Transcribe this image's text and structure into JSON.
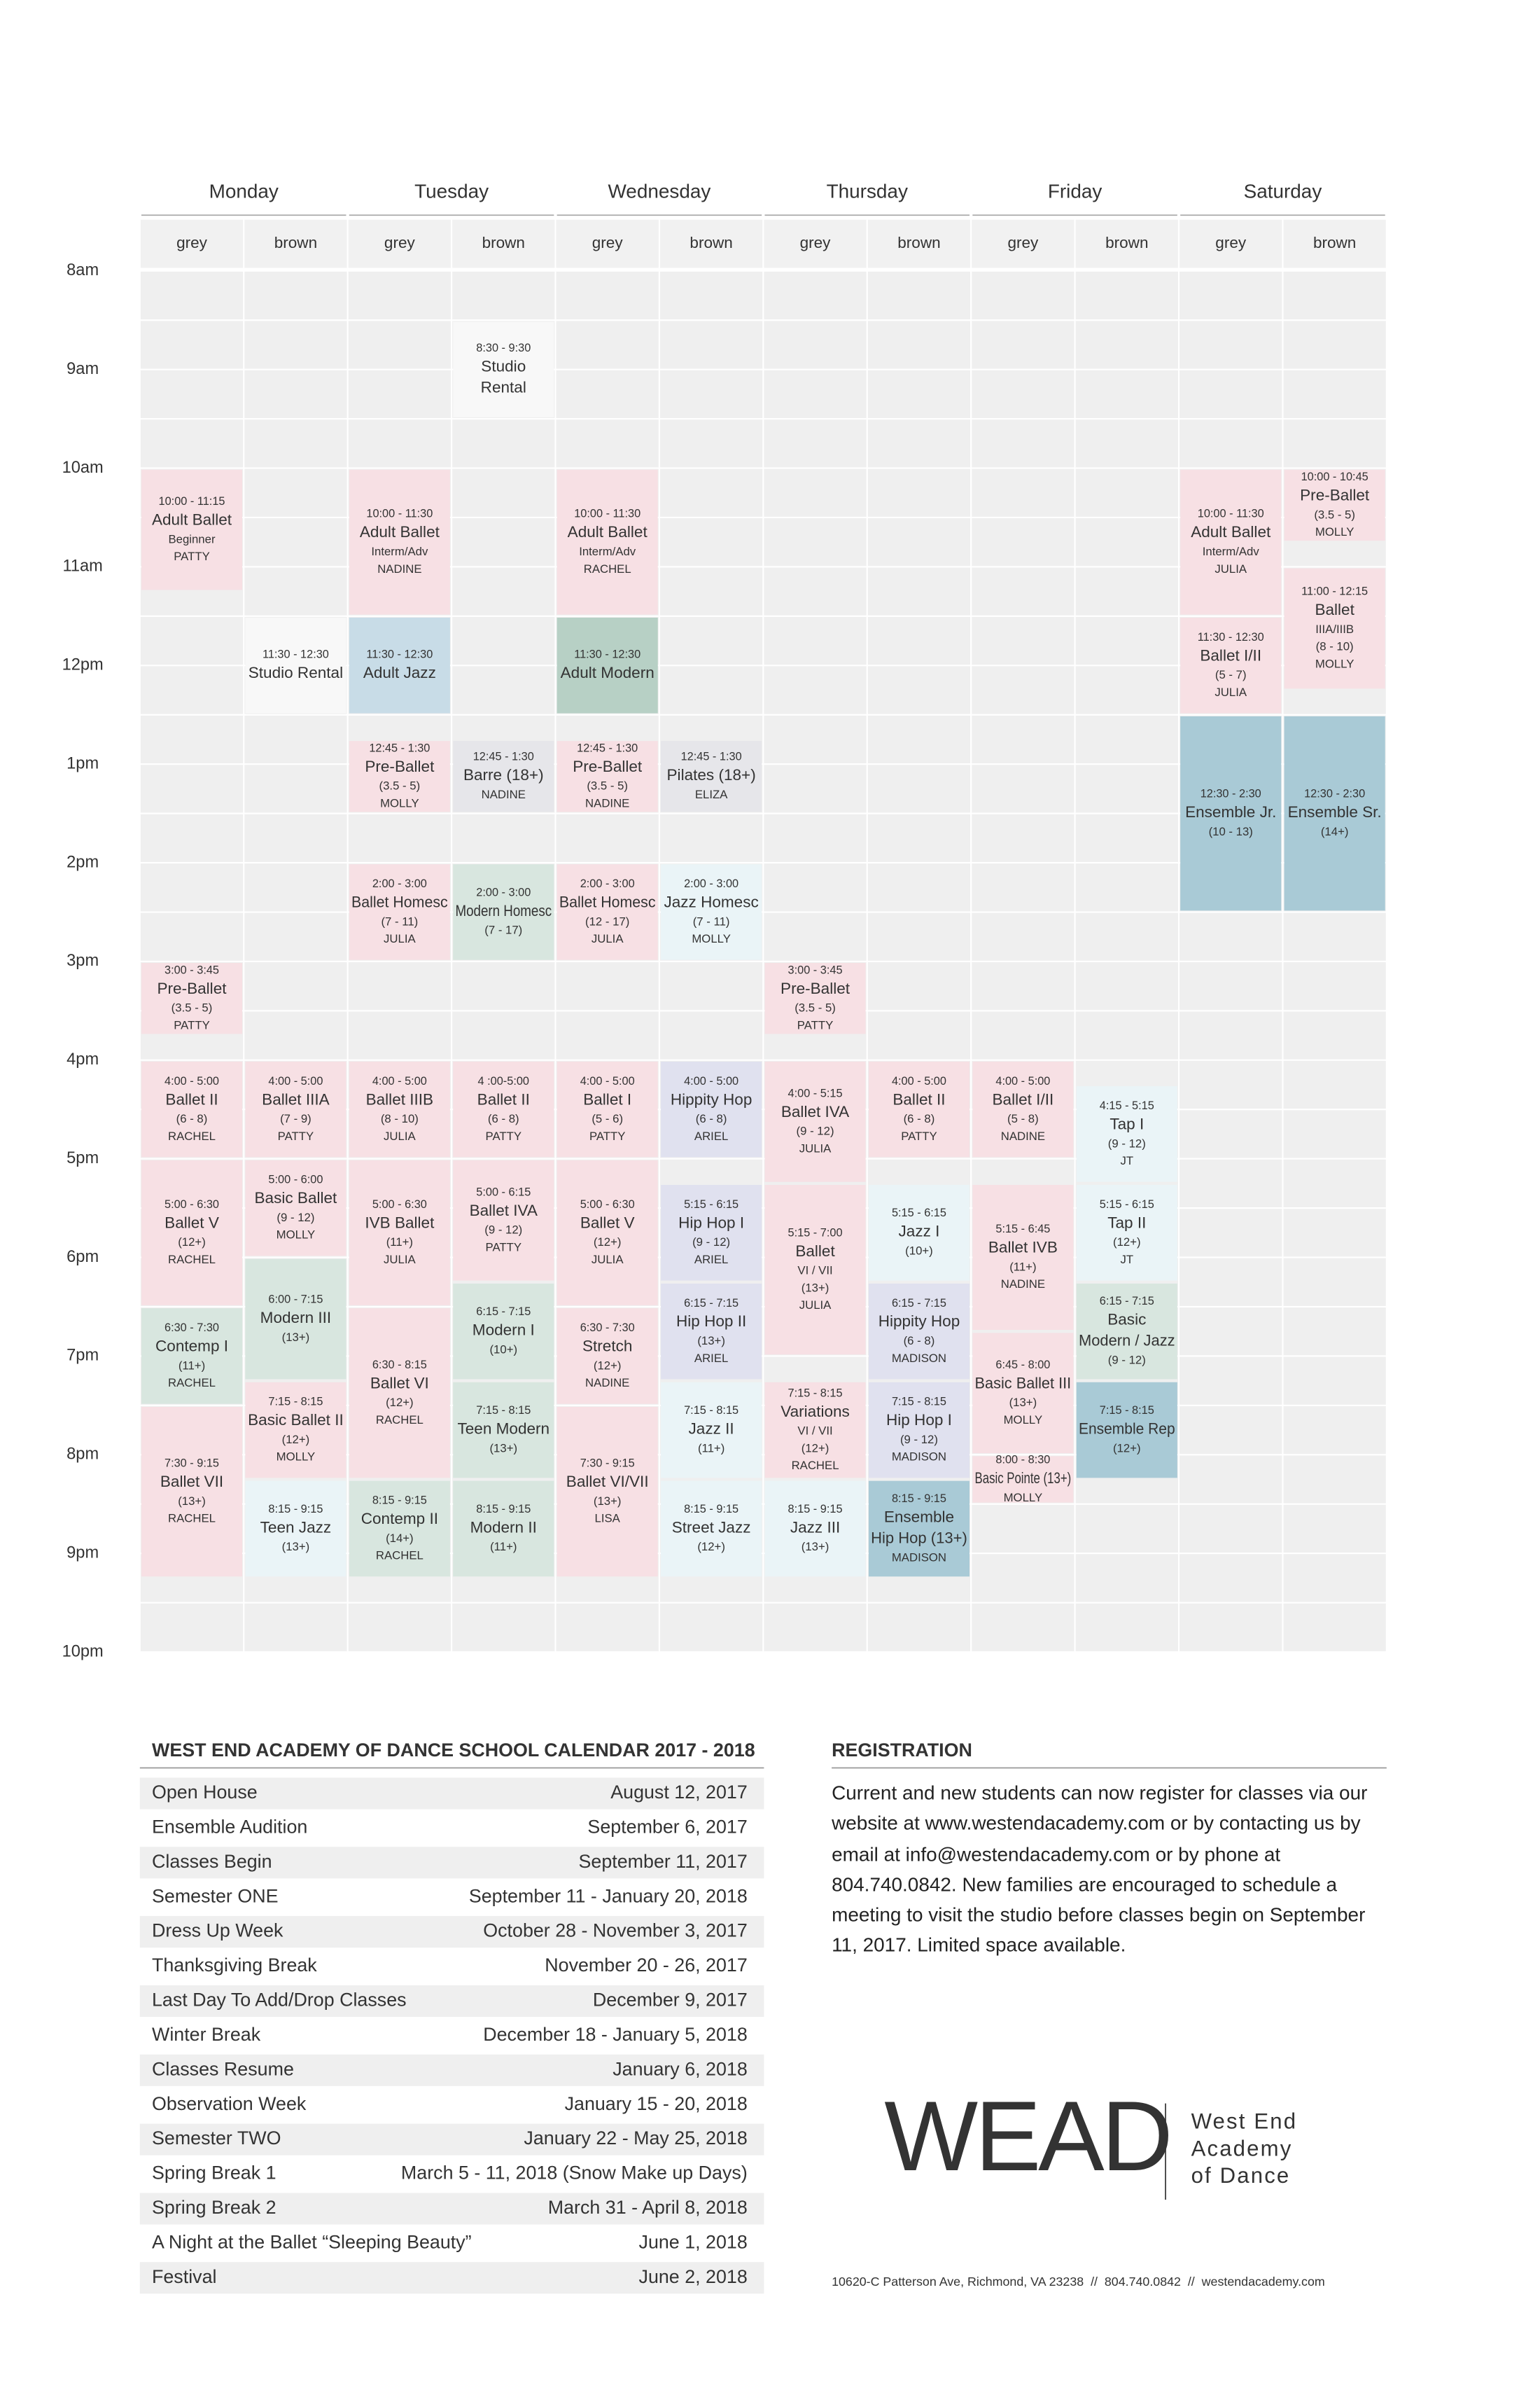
{
  "schedule": {
    "times": [
      "8am",
      "9am",
      "10am",
      "11am",
      "12pm",
      "1pm",
      "2pm",
      "3pm",
      "4pm",
      "5pm",
      "6pm",
      "7pm",
      "8pm",
      "9pm",
      "10pm"
    ],
    "days": [
      {
        "name": "Monday",
        "rooms": [
          {
            "name": "grey",
            "classes": [
              {
                "time": "10:00 - 11:15",
                "lines": [
                  "Adult Ballet",
                  "Beginner",
                  "PATTY"
                ],
                "color": "#f7e0e4"
              },
              {
                "time": "3:00 - 3:45",
                "lines": [
                  "Pre-Ballet",
                  "(3.5 - 5)",
                  "PATTY"
                ],
                "color": "#f7e0e4"
              },
              {
                "time": "4:00 - 5:00",
                "lines": [
                  "Ballet II",
                  "(6 - 8)",
                  "RACHEL"
                ],
                "color": "#f7e0e4"
              },
              {
                "time": "5:00 - 6:30",
                "lines": [
                  "Ballet V",
                  "(12+)",
                  "RACHEL"
                ],
                "color": "#f7e0e4"
              },
              {
                "time": "6:30 - 7:30",
                "lines": [
                  "Contemp I",
                  "(11+)",
                  "RACHEL"
                ],
                "color": "#d8e6df"
              },
              {
                "time": "7:30 - 9:15",
                "lines": [
                  "Ballet VII",
                  "(13+)",
                  "RACHEL"
                ],
                "color": "#f7e0e4"
              }
            ]
          },
          {
            "name": "brown",
            "classes": [
              {
                "time": "11:30 - 12:30",
                "lines": [
                  "Studio Rental"
                ],
                "color": "#f8f8f8"
              },
              {
                "time": "4:00 - 5:00",
                "lines": [
                  "Ballet IIIA",
                  "(7 - 9)",
                  "PATTY"
                ],
                "color": "#f7e0e4"
              },
              {
                "time": "5:00 - 6:00",
                "lines": [
                  "Basic Ballet",
                  "(9 - 12)",
                  "MOLLY"
                ],
                "color": "#f7e0e4"
              },
              {
                "time": "6:00 - 7:15",
                "lines": [
                  "Modern III",
                  "(13+)"
                ],
                "color": "#d8e6df"
              },
              {
                "time": "7:15 - 8:15",
                "lines": [
                  "Basic Ballet II",
                  "(12+)",
                  "MOLLY"
                ],
                "color": "#f7e0e4"
              },
              {
                "time": "8:15 - 9:15",
                "lines": [
                  "Teen Jazz",
                  "(13+)"
                ],
                "color": "#eaf4f7"
              }
            ]
          }
        ]
      },
      {
        "name": "Tuesday",
        "rooms": [
          {
            "name": "grey",
            "classes": [
              {
                "time": "10:00 - 11:30",
                "lines": [
                  "Adult Ballet",
                  "Interm/Adv",
                  "NADINE"
                ],
                "color": "#f7e0e4"
              },
              {
                "time": "11:30 - 12:30",
                "lines": [
                  "Adult Jazz"
                ],
                "color": "#c8dce7"
              },
              {
                "time": "12:45 - 1:30",
                "lines": [
                  "Pre-Ballet",
                  "(3.5 - 5)",
                  "MOLLY"
                ],
                "color": "#f7e0e4"
              },
              {
                "time": "2:00 - 3:00",
                "lines": [
                  "Ballet Homesc",
                  "(7 - 11)",
                  "JULIA"
                ],
                "color": "#f7e0e4"
              },
              {
                "time": "4:00 - 5:00",
                "lines": [
                  "Ballet IIIB",
                  "(8 - 10)",
                  "JULIA"
                ],
                "color": "#f7e0e4"
              },
              {
                "time": "5:00 - 6:30",
                "lines": [
                  "IVB Ballet",
                  "(11+)",
                  "JULIA"
                ],
                "color": "#f7e0e4"
              },
              {
                "time": "6:30 - 8:15",
                "lines": [
                  "Ballet VI",
                  "(12+)",
                  "RACHEL"
                ],
                "color": "#f7e0e4"
              },
              {
                "time": "8:15 - 9:15",
                "lines": [
                  "Contemp II",
                  "(14+)",
                  "RACHEL"
                ],
                "color": "#d8e6df"
              }
            ]
          },
          {
            "name": "brown",
            "classes": [
              {
                "time": "8:30 - 9:30",
                "lines": [
                  "Studio",
                  "Rental"
                ],
                "color": "#f8f8f8"
              },
              {
                "time": "12:45 - 1:30",
                "lines": [
                  "Barre (18+)",
                  "NADINE"
                ],
                "color": "#e6e6ea"
              },
              {
                "time": "2:00 - 3:00",
                "lines": [
                  "Modern Homesc",
                  "(7 - 17)"
                ],
                "color": "#d8e6df"
              },
              {
                "time": "4 :00-5:00",
                "lines": [
                  "Ballet II",
                  "(6 - 8)",
                  "PATTY"
                ],
                "color": "#f7e0e4"
              },
              {
                "time": "5:00 - 6:15",
                "lines": [
                  "Ballet IVA",
                  "(9 - 12)",
                  "PATTY"
                ],
                "color": "#f7e0e4"
              },
              {
                "time": "6:15 - 7:15",
                "lines": [
                  "Modern I",
                  "(10+)"
                ],
                "color": "#d8e6df"
              },
              {
                "time": "7:15 - 8:15",
                "lines": [
                  "Teen Modern",
                  "(13+)"
                ],
                "color": "#d8e6df"
              },
              {
                "time": "8:15 - 9:15",
                "lines": [
                  "Modern II",
                  "(11+)"
                ],
                "color": "#d8e6df"
              }
            ]
          }
        ]
      },
      {
        "name": "Wednesday",
        "rooms": [
          {
            "name": "grey",
            "classes": [
              {
                "time": "10:00 - 11:30",
                "lines": [
                  "Adult Ballet",
                  "Interm/Adv",
                  "RACHEL"
                ],
                "color": "#f7e0e4"
              },
              {
                "time": "11:30 - 12:30",
                "lines": [
                  "Adult Modern"
                ],
                "color": "#b7d0c5"
              },
              {
                "time": "12:45 - 1:30",
                "lines": [
                  "Pre-Ballet",
                  "(3.5 - 5)",
                  "NADINE"
                ],
                "color": "#f7e0e4"
              },
              {
                "time": "2:00 - 3:00",
                "lines": [
                  "Ballet Homesc",
                  "(12 - 17)",
                  "JULIA"
                ],
                "color": "#f7e0e4"
              },
              {
                "time": "4:00 - 5:00",
                "lines": [
                  "Ballet I",
                  "(5 - 6)",
                  "PATTY"
                ],
                "color": "#f7e0e4"
              },
              {
                "time": "5:00 - 6:30",
                "lines": [
                  "Ballet V",
                  "(12+)",
                  "JULIA"
                ],
                "color": "#f7e0e4"
              },
              {
                "time": "6:30 - 7:30",
                "lines": [
                  "Stretch",
                  "(12+)",
                  "NADINE"
                ],
                "color": "#f7e0e4"
              },
              {
                "time": "7:30 - 9:15",
                "lines": [
                  "Ballet VI/VII",
                  "(13+)",
                  "LISA"
                ],
                "color": "#f7e0e4"
              }
            ]
          },
          {
            "name": "brown",
            "classes": [
              {
                "time": "12:45 - 1:30",
                "lines": [
                  "Pilates (18+)",
                  "ELIZA"
                ],
                "color": "#e6e6ea"
              },
              {
                "time": "2:00 - 3:00",
                "lines": [
                  "Jazz Homesc",
                  "(7 - 11)",
                  "MOLLY"
                ],
                "color": "#eaf4f7"
              },
              {
                "time": "4:00 - 5:00",
                "lines": [
                  "Hippity Hop",
                  "(6 - 8)",
                  "ARIEL"
                ],
                "color": "#e0e1ef"
              },
              {
                "time": "5:15 - 6:15",
                "lines": [
                  "Hip Hop I",
                  "(9 - 12)",
                  "ARIEL"
                ],
                "color": "#e0e1ef"
              },
              {
                "time": "6:15 - 7:15",
                "lines": [
                  "Hip Hop II",
                  "(13+)",
                  "ARIEL"
                ],
                "color": "#e0e1ef"
              },
              {
                "time": "7:15 - 8:15",
                "lines": [
                  "Jazz II",
                  "(11+)"
                ],
                "color": "#eaf4f7"
              },
              {
                "time": "8:15 - 9:15",
                "lines": [
                  "Street Jazz",
                  "(12+)"
                ],
                "color": "#eaf4f7"
              }
            ]
          }
        ]
      },
      {
        "name": "Thursday",
        "rooms": [
          {
            "name": "grey",
            "classes": [
              {
                "time": "3:00 - 3:45",
                "lines": [
                  "Pre-Ballet",
                  "(3.5 - 5)",
                  "PATTY"
                ],
                "color": "#f7e0e4"
              },
              {
                "time": "4:00 - 5:15",
                "lines": [
                  "Ballet IVA",
                  "(9 - 12)",
                  "JULIA"
                ],
                "color": "#f7e0e4"
              },
              {
                "time": "5:15 - 7:00",
                "lines": [
                  "Ballet",
                  "VI / VII",
                  "(13+)",
                  "JULIA"
                ],
                "color": "#f7e0e4"
              },
              {
                "time": "7:15 - 8:15",
                "lines": [
                  "Variations",
                  "VI / VII",
                  "(12+)",
                  "RACHEL"
                ],
                "color": "#f7e0e4"
              },
              {
                "time": "8:15 - 9:15",
                "lines": [
                  "Jazz III",
                  "(13+)"
                ],
                "color": "#eaf4f7"
              }
            ]
          },
          {
            "name": "brown",
            "classes": [
              {
                "time": "4:00 - 5:00",
                "lines": [
                  "Ballet II",
                  "(6 - 8)",
                  "PATTY"
                ],
                "color": "#f7e0e4"
              },
              {
                "time": "5:15 - 6:15",
                "lines": [
                  "Jazz I",
                  "(10+)"
                ],
                "color": "#eaf4f7"
              },
              {
                "time": "6:15 - 7:15",
                "lines": [
                  "Hippity Hop",
                  "(6 - 8)",
                  "MADISON"
                ],
                "color": "#e0e1ef"
              },
              {
                "time": "7:15 - 8:15",
                "lines": [
                  "Hip Hop I",
                  "(9 - 12)",
                  "MADISON"
                ],
                "color": "#e0e1ef"
              },
              {
                "time": "8:15 - 9:15",
                "lines": [
                  "Ensemble",
                  "Hip Hop (13+)",
                  "MADISON"
                ],
                "color": "#a9cad6"
              }
            ]
          }
        ]
      },
      {
        "name": "Friday",
        "rooms": [
          {
            "name": "grey",
            "classes": [
              {
                "time": "4:00 - 5:00",
                "lines": [
                  "Ballet I/II",
                  "(5 - 8)",
                  "NADINE"
                ],
                "color": "#f7e0e4"
              },
              {
                "time": "5:15 - 6:45",
                "lines": [
                  "Ballet IVB",
                  "(11+)",
                  "NADINE"
                ],
                "color": "#f7e0e4"
              },
              {
                "time": "6:45 - 8:00",
                "lines": [
                  "Basic Ballet III",
                  "(13+)",
                  "MOLLY"
                ],
                "color": "#f7e0e4"
              },
              {
                "time": "8:00 - 8:30",
                "lines": [
                  "Basic Pointe (13+)",
                  "MOLLY"
                ],
                "color": "#f7e0e4"
              }
            ]
          },
          {
            "name": "brown",
            "classes": [
              {
                "time": "4:15 - 5:15",
                "lines": [
                  "Tap I",
                  "(9 - 12)",
                  "JT"
                ],
                "color": "#eaf4f7"
              },
              {
                "time": "5:15 - 6:15",
                "lines": [
                  "Tap II",
                  "(12+)",
                  "JT"
                ],
                "color": "#eaf4f7"
              },
              {
                "time": "6:15 - 7:15",
                "lines": [
                  "Basic",
                  "Modern / Jazz",
                  "(9 - 12)"
                ],
                "color": "#d8e6df"
              },
              {
                "time": "7:15 - 8:15",
                "lines": [
                  "Ensemble Rep",
                  "(12+)"
                ],
                "color": "#a9cad6"
              }
            ]
          }
        ]
      },
      {
        "name": "Saturday",
        "rooms": [
          {
            "name": "grey",
            "classes": [
              {
                "time": "10:00 - 11:30",
                "lines": [
                  "Adult Ballet",
                  "Interm/Adv",
                  "JULIA"
                ],
                "color": "#f7e0e4"
              },
              {
                "time": "11:30 - 12:30",
                "lines": [
                  "Ballet I/II",
                  "(5 - 7)",
                  "JULIA"
                ],
                "color": "#f7e0e4"
              },
              {
                "time": "12:30 - 2:30",
                "lines": [
                  "Ensemble Jr.",
                  "(10 - 13)"
                ],
                "color": "#a9cad6"
              }
            ]
          },
          {
            "name": "brown",
            "classes": [
              {
                "time": "10:00 - 10:45",
                "lines": [
                  "Pre-Ballet",
                  "(3.5 - 5)",
                  "MOLLY"
                ],
                "color": "#f7e0e4"
              },
              {
                "time": "11:00 - 12:15",
                "lines": [
                  "Ballet",
                  "IIIA/IIIB",
                  "(8 - 10)",
                  "MOLLY"
                ],
                "color": "#f7e0e4"
              },
              {
                "time": "12:30 - 2:30",
                "lines": [
                  "Ensemble Sr.",
                  "(14+)"
                ],
                "color": "#a9cad6"
              }
            ]
          }
        ]
      }
    ]
  },
  "calendar": {
    "title": "WEST END ACADEMY OF DANCE SCHOOL CALENDAR 2017 - 2018",
    "rows": [
      [
        "Open House",
        "August 12, 2017"
      ],
      [
        "Ensemble Audition",
        "September 6, 2017"
      ],
      [
        "Classes Begin",
        "September 11, 2017"
      ],
      [
        "Semester ONE",
        "September 11 - January 20, 2018"
      ],
      [
        "Dress Up Week",
        "October 28 - November 3, 2017"
      ],
      [
        "Thanksgiving Break",
        "November 20 - 26, 2017"
      ],
      [
        "Last Day To Add/Drop Classes",
        "December 9, 2017"
      ],
      [
        "Winter Break",
        "December 18 - January 5, 2018"
      ],
      [
        "Classes Resume",
        "January 6, 2018"
      ],
      [
        "Observation Week",
        "January 15 - 20, 2018"
      ],
      [
        "Semester TWO",
        "January 22 - May 25, 2018"
      ],
      [
        "Spring Break 1",
        "March 5 - 11, 2018 (Snow Make up Days)"
      ],
      [
        "Spring Break 2",
        "March 31 - April 8, 2018"
      ],
      [
        "A Night at the Ballet “Sleeping Beauty”",
        "June 1, 2018"
      ],
      [
        "Festival",
        "June 2, 2018"
      ]
    ]
  },
  "registration": {
    "title": "REGISTRATION",
    "text": "Current and new students can now register for classes via our website at www.westendacademy.com or by contacting us by email at info@westendacademy.com or by phone at 804.740.0842. New families are encouraged to schedule a meeting to visit the studio before classes begin on September 11, 2017. Limited space available."
  },
  "logo": {
    "mark": "WEAD",
    "name": [
      "West End",
      "Academy",
      "of Dance"
    ]
  },
  "footer": "10620-C Patterson Ave, Richmond, VA 23238  //  804.740.0842  //  westendacademy.com"
}
